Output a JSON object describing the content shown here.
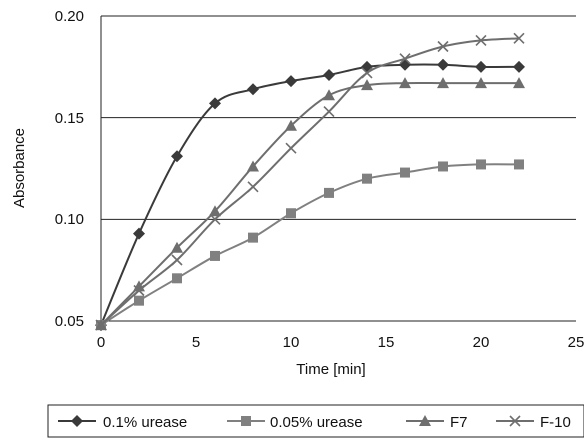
{
  "chart_data": {
    "type": "line",
    "xlabel": "Time [min]",
    "ylabel": "Absorbance",
    "xlim": [
      0,
      25
    ],
    "ylim": [
      0.05,
      0.2
    ],
    "x_ticks": [
      "0",
      "5",
      "10",
      "15",
      "20",
      "25"
    ],
    "y_ticks": [
      "0.05",
      "0.10",
      "0.15",
      "0.20"
    ],
    "grid": "horizontal",
    "legend_position": "bottom",
    "series": [
      {
        "name": "0.1% urease",
        "marker": "diamond",
        "color": "#3a3a3a",
        "x": [
          0,
          2,
          4,
          6,
          8,
          10,
          12,
          14,
          16,
          18,
          20,
          22
        ],
        "y": [
          0.048,
          0.093,
          0.131,
          0.157,
          0.164,
          0.168,
          0.171,
          0.175,
          0.176,
          0.176,
          0.175,
          0.175
        ]
      },
      {
        "name": "0.05% urease",
        "marker": "square",
        "color": "#808080",
        "x": [
          0,
          2,
          4,
          6,
          8,
          10,
          12,
          14,
          16,
          18,
          20,
          22
        ],
        "y": [
          0.048,
          0.06,
          0.071,
          0.082,
          0.091,
          0.103,
          0.113,
          0.12,
          0.123,
          0.126,
          0.127,
          0.127
        ]
      },
      {
        "name": "F7",
        "marker": "triangle",
        "color": "#6e6e6e",
        "x": [
          0,
          2,
          4,
          6,
          8,
          10,
          12,
          14,
          16,
          18,
          20,
          22
        ],
        "y": [
          0.048,
          0.067,
          0.086,
          0.104,
          0.126,
          0.146,
          0.161,
          0.166,
          0.167,
          0.167,
          0.167,
          0.167
        ]
      },
      {
        "name": "F-10",
        "marker": "x",
        "color": "#6e6e6e",
        "x": [
          0,
          2,
          4,
          6,
          8,
          10,
          12,
          14,
          16,
          18,
          20,
          22
        ],
        "y": [
          0.048,
          0.065,
          0.08,
          0.1,
          0.116,
          0.135,
          0.153,
          0.172,
          0.179,
          0.185,
          0.188,
          0.189
        ]
      }
    ]
  }
}
